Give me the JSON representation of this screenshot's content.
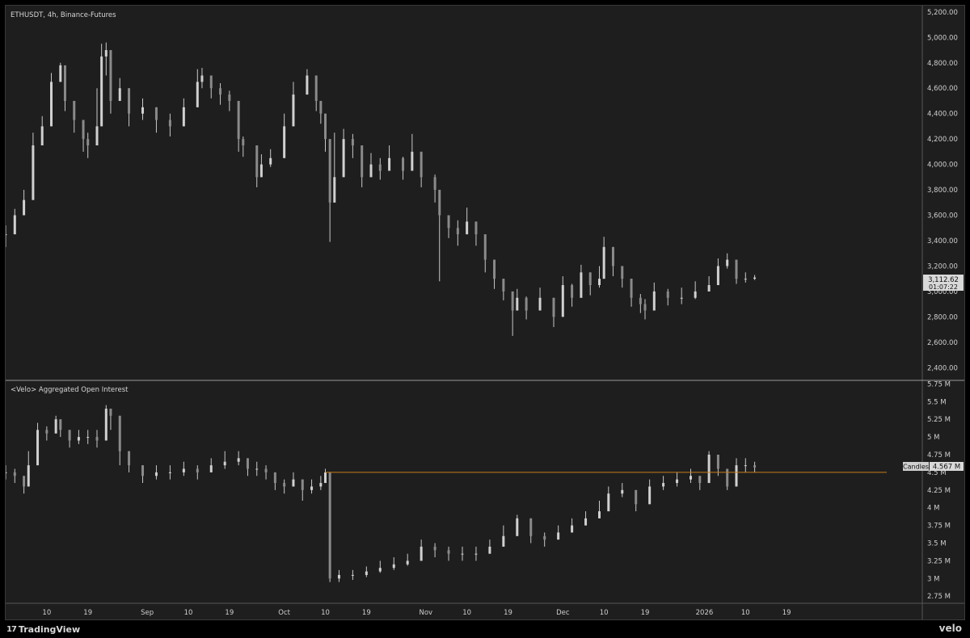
{
  "top_pane": {
    "legend": "ETHUSDT, 4h, Binance-Futures",
    "price_label": "3,112.62",
    "countdown_label": "01:07:22"
  },
  "bottom_pane": {
    "legend": "<Velo> Aggregated Open Interest",
    "series_tag": "Candles",
    "value_label": "4.567 M"
  },
  "footer": {
    "brand": "TradingView",
    "brand_mark": "17",
    "watermark": "velo"
  },
  "colors": {
    "background": "#1e1e1e",
    "candles": "#c8c8c8",
    "level_line": "#c77d1c",
    "grid_separator": "#9a9a9a"
  },
  "chart_data": [
    {
      "type": "candlestick",
      "title": "ETHUSDT, 4h, Binance-Futures",
      "ylim": [
        2300,
        5250
      ],
      "y_ticks": [
        "5,200.00",
        "5,000.00",
        "4,800.00",
        "4,600.00",
        "4,400.00",
        "4,200.00",
        "4,000.00",
        "3,800.00",
        "3,600.00",
        "3,400.00",
        "3,200.00",
        "3,000.00",
        "2,800.00",
        "2,600.00",
        "2,400.00"
      ],
      "y_tick_values": [
        5200,
        5000,
        4800,
        4600,
        4400,
        4200,
        4000,
        3800,
        3600,
        3400,
        3200,
        3000,
        2800,
        2600,
        2400
      ],
      "x_ticks": [
        "10",
        "19",
        "Sep",
        "10",
        "19",
        "Oct",
        "10",
        "19",
        "Nov",
        "10",
        "19",
        "Dec",
        "10",
        "19",
        "2026",
        "10",
        "19"
      ],
      "x_tick_dates": [
        "2025-08-10",
        "2025-08-19",
        "2025-09-01",
        "2025-09-10",
        "2025-09-19",
        "2025-10-01",
        "2025-10-10",
        "2025-10-19",
        "2025-11-01",
        "2025-11-10",
        "2025-11-19",
        "2025-12-01",
        "2025-12-10",
        "2025-12-19",
        "2026-01-01",
        "2026-01-10",
        "2026-01-19"
      ],
      "x_start": "2025-08-01",
      "last_price": 3112.62,
      "series": [
        {
          "x": [
            "2025-08-01",
            "2025-08-03",
            "2025-08-05",
            "2025-08-07",
            "2025-08-09",
            "2025-08-11",
            "2025-08-13",
            "2025-08-14",
            "2025-08-16",
            "2025-08-18",
            "2025-08-19",
            "2025-08-21",
            "2025-08-22",
            "2025-08-23",
            "2025-08-24",
            "2025-08-26",
            "2025-08-28",
            "2025-08-31",
            "2025-09-03",
            "2025-09-06",
            "2025-09-09",
            "2025-09-12",
            "2025-09-13",
            "2025-09-15",
            "2025-09-17",
            "2025-09-19",
            "2025-09-21",
            "2025-09-22",
            "2025-09-25",
            "2025-09-26",
            "2025-09-28",
            "2025-10-01",
            "2025-10-03",
            "2025-10-06",
            "2025-10-08",
            "2025-10-09",
            "2025-10-10",
            "2025-10-11",
            "2025-10-12",
            "2025-10-14",
            "2025-10-16",
            "2025-10-18",
            "2025-10-20",
            "2025-10-22",
            "2025-10-24",
            "2025-10-27",
            "2025-10-29",
            "2025-10-31",
            "2025-11-03",
            "2025-11-04",
            "2025-11-06",
            "2025-11-08",
            "2025-11-10",
            "2025-11-12",
            "2025-11-14",
            "2025-11-16",
            "2025-11-18",
            "2025-11-20",
            "2025-11-21",
            "2025-11-23",
            "2025-11-26",
            "2025-11-29",
            "2025-12-01",
            "2025-12-03",
            "2025-12-05",
            "2025-12-07",
            "2025-12-09",
            "2025-12-10",
            "2025-12-12",
            "2025-12-14",
            "2025-12-16",
            "2025-12-18",
            "2025-12-19",
            "2025-12-21",
            "2025-12-24",
            "2025-12-27",
            "2025-12-30",
            "2026-01-02",
            "2026-01-04",
            "2026-01-06",
            "2026-01-08",
            "2026-01-10",
            "2026-01-12"
          ],
          "values": [
            3450,
            3600,
            3720,
            4150,
            4300,
            4650,
            4780,
            4500,
            4350,
            4200,
            4150,
            4300,
            4850,
            4900,
            4500,
            4600,
            4400,
            4450,
            4350,
            4300,
            4450,
            4650,
            4700,
            4600,
            4550,
            4500,
            4200,
            4150,
            3900,
            4000,
            4050,
            4300,
            4550,
            4700,
            4500,
            4400,
            4200,
            3700,
            3900,
            4200,
            4150,
            3900,
            4000,
            3950,
            4050,
            3950,
            4100,
            3900,
            3800,
            3600,
            3500,
            3450,
            3550,
            3450,
            3250,
            3100,
            3000,
            2850,
            2950,
            2850,
            2950,
            2800,
            3050,
            2950,
            3150,
            3050,
            3100,
            3350,
            3200,
            3100,
            2950,
            2900,
            2850,
            3000,
            2950,
            2950,
            3000,
            3050,
            3200,
            3250,
            3100,
            3100,
            3110
          ],
          "highs": [
            3520,
            3650,
            3800,
            4250,
            4380,
            4720,
            4800,
            4650,
            4450,
            4300,
            4250,
            4600,
            4950,
            4960,
            4650,
            4680,
            4500,
            4520,
            4450,
            4400,
            4520,
            4750,
            4760,
            4680,
            4640,
            4580,
            4300,
            4220,
            4050,
            4080,
            4120,
            4400,
            4650,
            4750,
            4580,
            4480,
            4280,
            4000,
            4250,
            4280,
            4240,
            4080,
            4090,
            4050,
            4150,
            4060,
            4240,
            4000,
            3920,
            3720,
            3600,
            3560,
            3660,
            3520,
            3340,
            3200,
            3080,
            3000,
            3020,
            2960,
            3030,
            2920,
            3120,
            3060,
            3210,
            3140,
            3200,
            3430,
            3270,
            3180,
            3040,
            2980,
            2940,
            3070,
            3020,
            3030,
            3080,
            3120,
            3260,
            3300,
            3170,
            3150,
            3130
          ],
          "lows": [
            3350,
            3500,
            3640,
            4050,
            4200,
            4550,
            4650,
            4420,
            4250,
            4100,
            4050,
            4200,
            4600,
            4700,
            4400,
            4500,
            4300,
            4350,
            4250,
            4220,
            4360,
            4550,
            4600,
            4520,
            4470,
            4420,
            4100,
            4060,
            3820,
            3920,
            3980,
            4200,
            4450,
            4600,
            4420,
            4320,
            4100,
            3390,
            3800,
            4100,
            4050,
            3820,
            3920,
            3880,
            3960,
            3880,
            4000,
            3820,
            3700,
            3080,
            3420,
            3360,
            3450,
            3360,
            3150,
            3020,
            2930,
            2650,
            2880,
            2780,
            2860,
            2720,
            2980,
            2880,
            3060,
            2970,
            3030,
            3260,
            3120,
            3030,
            2880,
            2830,
            2780,
            2930,
            2890,
            2900,
            2940,
            3000,
            3140,
            3180,
            3060,
            3070,
            3090
          ]
        }
      ]
    },
    {
      "type": "candlestick",
      "title": "<Velo> Aggregated Open Interest",
      "ylim": [
        2.65,
        5.8
      ],
      "y_ticks": [
        "5.75 M",
        "5.5 M",
        "5.25 M",
        "5 M",
        "4.75 M",
        "4.5 M",
        "4.25 M",
        "4 M",
        "3.75 M",
        "3.5 M",
        "3.25 M",
        "3 M",
        "2.75 M"
      ],
      "y_tick_values": [
        5.75,
        5.5,
        5.25,
        5,
        4.75,
        4.5,
        4.25,
        4,
        3.75,
        3.5,
        3.25,
        3,
        2.75
      ],
      "last_value": 4.567,
      "level_line": {
        "value": 4.5,
        "from": "2025-10-10"
      },
      "series": [
        {
          "x": [
            "2025-08-01",
            "2025-08-03",
            "2025-08-05",
            "2025-08-06",
            "2025-08-08",
            "2025-08-10",
            "2025-08-12",
            "2025-08-13",
            "2025-08-15",
            "2025-08-17",
            "2025-08-19",
            "2025-08-21",
            "2025-08-23",
            "2025-08-24",
            "2025-08-26",
            "2025-08-28",
            "2025-08-31",
            "2025-09-03",
            "2025-09-06",
            "2025-09-09",
            "2025-09-12",
            "2025-09-15",
            "2025-09-18",
            "2025-09-21",
            "2025-09-23",
            "2025-09-25",
            "2025-09-27",
            "2025-09-29",
            "2025-10-01",
            "2025-10-03",
            "2025-10-05",
            "2025-10-07",
            "2025-10-09",
            "2025-10-10",
            "2025-10-11",
            "2025-10-13",
            "2025-10-16",
            "2025-10-19",
            "2025-10-22",
            "2025-10-25",
            "2025-10-28",
            "2025-10-31",
            "2025-11-03",
            "2025-11-06",
            "2025-11-09",
            "2025-11-12",
            "2025-11-15",
            "2025-11-18",
            "2025-11-21",
            "2025-11-24",
            "2025-11-27",
            "2025-11-30",
            "2025-12-03",
            "2025-12-06",
            "2025-12-09",
            "2025-12-11",
            "2025-12-14",
            "2025-12-17",
            "2025-12-20",
            "2025-12-23",
            "2025-12-26",
            "2025-12-29",
            "2025-12-31",
            "2026-01-02",
            "2026-01-04",
            "2026-01-06",
            "2026-01-08",
            "2026-01-10",
            "2026-01-12"
          ],
          "values": [
            4.5,
            4.45,
            4.3,
            4.6,
            5.1,
            5.05,
            5.25,
            5.1,
            4.95,
            5.0,
            5.0,
            4.95,
            5.4,
            5.3,
            4.8,
            4.6,
            4.45,
            4.5,
            4.5,
            4.55,
            4.5,
            4.6,
            4.65,
            4.7,
            4.55,
            4.55,
            4.5,
            4.35,
            4.3,
            4.4,
            4.25,
            4.3,
            4.35,
            4.5,
            3.0,
            3.05,
            3.05,
            3.1,
            3.15,
            3.2,
            3.25,
            3.45,
            3.4,
            3.35,
            3.35,
            3.35,
            3.45,
            3.6,
            3.85,
            3.6,
            3.55,
            3.65,
            3.75,
            3.85,
            3.95,
            4.2,
            4.25,
            4.05,
            4.3,
            4.35,
            4.4,
            4.45,
            4.35,
            4.75,
            4.55,
            4.3,
            4.6,
            4.6,
            4.57
          ],
          "highs": [
            4.6,
            4.55,
            4.45,
            4.8,
            5.2,
            5.15,
            5.3,
            5.2,
            5.05,
            5.1,
            5.1,
            5.1,
            5.45,
            5.4,
            4.95,
            4.7,
            4.55,
            4.6,
            4.6,
            4.65,
            4.6,
            4.7,
            4.8,
            4.8,
            4.65,
            4.65,
            4.6,
            4.45,
            4.4,
            4.5,
            4.4,
            4.4,
            4.45,
            4.55,
            3.15,
            3.12,
            3.12,
            3.17,
            3.25,
            3.3,
            3.35,
            3.55,
            3.5,
            3.45,
            3.45,
            3.45,
            3.55,
            3.75,
            3.9,
            3.7,
            3.65,
            3.75,
            3.85,
            3.95,
            4.1,
            4.3,
            4.35,
            4.15,
            4.4,
            4.45,
            4.5,
            4.55,
            4.45,
            4.8,
            4.65,
            4.45,
            4.7,
            4.7,
            4.65
          ],
          "lows": [
            4.4,
            4.35,
            4.2,
            4.5,
            5.0,
            4.95,
            5.1,
            5.0,
            4.85,
            4.9,
            4.9,
            4.85,
            5.3,
            5.1,
            4.6,
            4.5,
            4.35,
            4.4,
            4.4,
            4.45,
            4.4,
            4.5,
            4.55,
            4.6,
            4.45,
            4.45,
            4.4,
            4.25,
            4.2,
            4.3,
            4.1,
            4.2,
            4.25,
            4.4,
            2.95,
            2.95,
            2.98,
            3.02,
            3.08,
            3.12,
            3.18,
            3.35,
            3.3,
            3.25,
            3.25,
            3.25,
            3.35,
            3.5,
            3.7,
            3.5,
            3.45,
            3.55,
            3.65,
            3.75,
            3.85,
            4.1,
            4.15,
            3.95,
            4.2,
            4.25,
            4.3,
            4.35,
            4.25,
            4.6,
            4.45,
            4.25,
            4.5,
            4.5,
            4.5
          ]
        }
      ]
    }
  ]
}
